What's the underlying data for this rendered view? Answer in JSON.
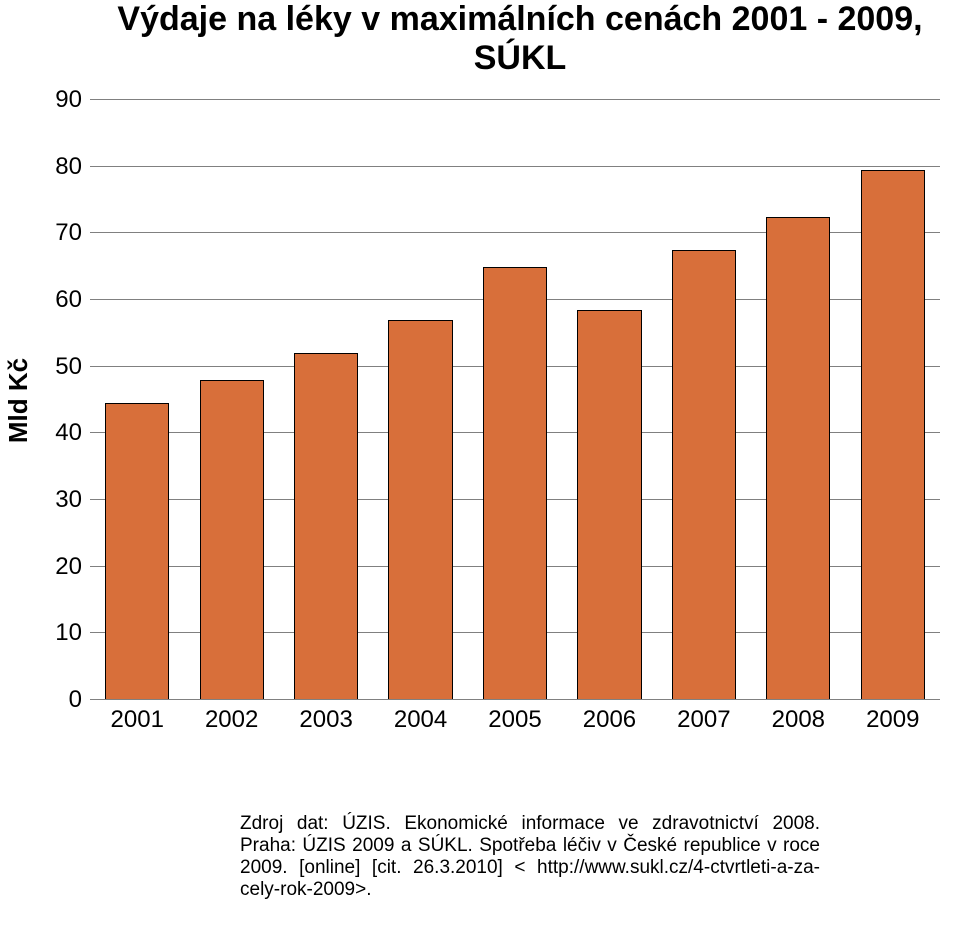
{
  "chart": {
    "type": "bar",
    "title": "Výdaje na léky v maximálních cenách 2001 - 2009, SÚKL",
    "title_fontsize": 34,
    "title_fontweight": 700,
    "title_color": "#000000",
    "ylabel": "Mld Kč",
    "ylabel_fontsize": 26,
    "ylabel_fontweight": 700,
    "ylabel_color": "#000000",
    "xlim": [
      0.5,
      9.5
    ],
    "ylim": [
      0,
      90
    ],
    "ytick_step": 10,
    "yticks": [
      0,
      10,
      20,
      30,
      40,
      50,
      60,
      70,
      80,
      90
    ],
    "tick_fontsize": 24,
    "tick_color": "#000000",
    "categories": [
      "2001",
      "2002",
      "2003",
      "2004",
      "2005",
      "2006",
      "2007",
      "2008",
      "2009"
    ],
    "values": [
      44.5,
      48,
      52,
      57,
      65,
      58.5,
      67.5,
      72.5,
      79.5
    ],
    "bar_width": 0.68,
    "bar_fill": "#d86f3a",
    "bar_border_color": "#000000",
    "bar_border_width": 0.5,
    "grid_color": "#808080",
    "grid_width": 1,
    "axis_color": "#808080",
    "background_color": "#ffffff"
  },
  "source": {
    "text": "Zdroj dat: ÚZIS. Ekonomické informace ve zdravotnictví 2008. Praha: ÚZIS 2009 a SÚKL. Spotřeba léčiv v České republice v roce 2009. [online] [cit. 26.3.2010] < http://www.sukl.cz/4-ctvrtleti-a-za-cely-rok-2009>.",
    "fontsize": 19,
    "color": "#000000"
  }
}
